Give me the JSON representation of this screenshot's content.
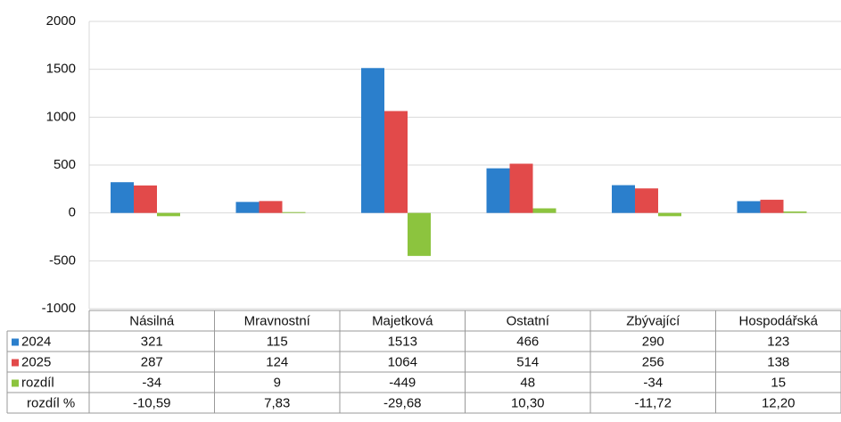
{
  "chart_data": {
    "type": "bar",
    "categories": [
      "Násilná",
      "Mravnostní",
      "Majetková",
      "Ostatní",
      "Zbývající",
      "Hospodářská"
    ],
    "series": [
      {
        "name": "2024",
        "color": "#2b7fcc",
        "values": [
          321,
          115,
          1513,
          466,
          290,
          123
        ]
      },
      {
        "name": "2025",
        "color": "#e24a4a",
        "values": [
          287,
          124,
          1064,
          514,
          256,
          138
        ]
      },
      {
        "name": "rozdíl",
        "color": "#8cc43e",
        "values": [
          -34,
          9,
          -449,
          48,
          -34,
          15
        ]
      }
    ],
    "table_row": {
      "name": "rozdíl %",
      "values": [
        "-10,59",
        "7,83",
        "-29,68",
        "10,30",
        "-11,72",
        "12,20"
      ]
    },
    "ylim": [
      -1000,
      2000
    ],
    "yticks": [
      -1000,
      -500,
      0,
      500,
      1000,
      1500,
      2000
    ],
    "grid": true
  }
}
